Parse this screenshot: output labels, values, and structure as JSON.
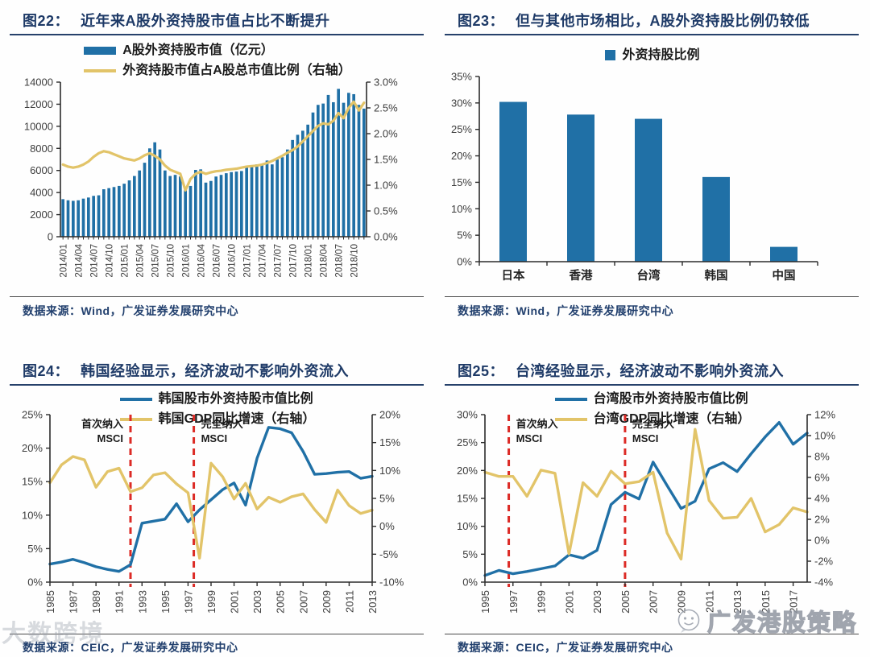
{
  "page": {
    "background": "#fefefe"
  },
  "colors": {
    "navy_title": "#1E3A67",
    "bar_blue": "#2070A6",
    "line_yellow": "#E2C469",
    "dash_red": "#DC2B26",
    "axis": "#2b2b2b",
    "tick_text": "#3d3d3d"
  },
  "watermarks": {
    "bottom_left_text": "大数跨境",
    "bottom_right_text": "广发港股策略",
    "bottom_right_icon": "chat-face-logo"
  },
  "figures": [
    {
      "label": "图22：",
      "title": "近年来A股外资持股市值占比不断提升",
      "source": "数据来源：Wind，广发证券发展研究中心",
      "chart_data": {
        "type": "bar",
        "title": "近年来A股外资持股市值占比不断提升",
        "legend_position": "top",
        "grid": false,
        "categories": [
          "2014/01",
          "2014/02",
          "2014/03",
          "2014/04",
          "2014/05",
          "2014/06",
          "2014/07",
          "2014/08",
          "2014/09",
          "2014/10",
          "2014/11",
          "2014/12",
          "2015/01",
          "2015/02",
          "2015/03",
          "2015/04",
          "2015/05",
          "2015/06",
          "2015/07",
          "2015/08",
          "2015/09",
          "2015/10",
          "2015/11",
          "2015/12",
          "2016/01",
          "2016/02",
          "2016/03",
          "2016/04",
          "2016/05",
          "2016/06",
          "2016/07",
          "2016/08",
          "2016/09",
          "2016/10",
          "2016/11",
          "2016/12",
          "2017/01",
          "2017/02",
          "2017/03",
          "2017/04",
          "2017/05",
          "2017/06",
          "2017/07",
          "2017/08",
          "2017/09",
          "2017/10",
          "2017/11",
          "2017/12",
          "2018/01",
          "2018/02",
          "2018/03",
          "2018/04",
          "2018/05",
          "2018/06",
          "2018/07",
          "2018/08",
          "2018/09",
          "2018/10",
          "2018/11",
          "2018/12"
        ],
        "x_tick_every": 3,
        "series": [
          {
            "name": "A股外资持股市值（亿元）",
            "type": "bar",
            "axis": "left",
            "color": "#2070A6",
            "values": [
              3400,
              3300,
              3250,
              3300,
              3450,
              3550,
              3700,
              3750,
              4300,
              4400,
              4500,
              4600,
              4800,
              5100,
              5500,
              6000,
              6700,
              8000,
              8550,
              7900,
              6000,
              5500,
              5600,
              5450,
              4250,
              4600,
              6050,
              6100,
              4900,
              5050,
              5450,
              5600,
              5750,
              5850,
              5900,
              5950,
              6400,
              6350,
              6550,
              6500,
              6900,
              6550,
              7000,
              7200,
              7900,
              8760,
              9230,
              9600,
              10150,
              11250,
              11940,
              12060,
              12840,
              12180,
              13390,
              12130,
              13030,
              12910,
              11940,
              11600
            ]
          },
          {
            "name": "外资持股市值占A股总市值比例（右轴）",
            "type": "line",
            "axis": "right",
            "color": "#E2C469",
            "values": [
              1.4,
              1.36,
              1.34,
              1.36,
              1.4,
              1.46,
              1.55,
              1.62,
              1.66,
              1.64,
              1.6,
              1.56,
              1.52,
              1.5,
              1.48,
              1.52,
              1.58,
              1.62,
              1.57,
              1.5,
              1.38,
              1.3,
              1.26,
              1.22,
              0.9,
              1.12,
              1.22,
              1.26,
              1.22,
              1.25,
              1.27,
              1.28,
              1.3,
              1.31,
              1.32,
              1.34,
              1.36,
              1.37,
              1.38,
              1.4,
              1.43,
              1.47,
              1.52,
              1.57,
              1.63,
              1.68,
              1.75,
              1.85,
              1.95,
              2.05,
              2.15,
              2.2,
              2.18,
              2.25,
              2.4,
              2.3,
              2.5,
              2.62,
              2.45,
              2.6
            ]
          }
        ],
        "left_axis": {
          "min": 0,
          "max": 14000,
          "step": 2000,
          "format": "int"
        },
        "right_axis": {
          "min": 0,
          "max": 3,
          "step": 0.5,
          "format": "pct1"
        }
      }
    },
    {
      "label": "图23：",
      "title": "但与其他市场相比，A股外资持股比例仍较低",
      "source": "数据来源：Wind，广发证券发展研究中心",
      "chart_data": {
        "type": "bar",
        "title": "但与其他市场相比，A股外资持股比例仍较低",
        "legend_position": "top",
        "grid": false,
        "categories": [
          "日本",
          "香港",
          "台湾",
          "韩国",
          "中国"
        ],
        "series": [
          {
            "name": "外资持股比例",
            "type": "bar",
            "axis": "left",
            "color": "#2070A6",
            "values": [
              30.2,
              27.8,
              27.0,
              16.0,
              2.8
            ]
          }
        ],
        "left_axis": {
          "min": 0,
          "max": 35,
          "step": 5,
          "format": "pct0"
        }
      }
    },
    {
      "label": "图24：",
      "title": "韩国经验显示，经济波动不影响外资流入",
      "source": "数据来源：CEIC，广发证券发展研究中心",
      "chart_data": {
        "type": "line",
        "title": "韩国经验显示，经济波动不影响外资流入",
        "legend_position": "top",
        "grid": false,
        "x": [
          1985,
          1986,
          1987,
          1988,
          1989,
          1990,
          1991,
          1992,
          1993,
          1994,
          1995,
          1996,
          1997,
          1998,
          1999,
          2000,
          2001,
          2002,
          2003,
          2004,
          2005,
          2006,
          2007,
          2008,
          2009,
          2010,
          2011,
          2012,
          2013
        ],
        "x_tick_labels": [
          "1985",
          "1987",
          "1989",
          "1991",
          "1993",
          "1995",
          "1997",
          "1999",
          "2001",
          "2003",
          "2005",
          "2007",
          "2009",
          "2011",
          "2013"
        ],
        "series": [
          {
            "name": "韩国股市外资持股市值比例",
            "type": "line",
            "axis": "left",
            "color": "#2070A6",
            "values": [
              2.7,
              3.0,
              3.4,
              2.9,
              2.3,
              1.9,
              1.6,
              2.6,
              8.8,
              9.1,
              9.4,
              11.7,
              9.0,
              10.8,
              12.3,
              13.8,
              14.8,
              11.5,
              18.5,
              23.1,
              22.9,
              22.3,
              19.5,
              16.1,
              16.2,
              16.4,
              16.5,
              15.5,
              15.8
            ]
          },
          {
            "name": "韩国GDP同比增速（右轴）",
            "type": "line",
            "axis": "right",
            "color": "#E2C469",
            "values": [
              7.8,
              11.0,
              12.5,
              11.9,
              7.0,
              9.8,
              10.4,
              6.2,
              6.9,
              9.2,
              9.6,
              7.6,
              6.0,
              -5.7,
              11.3,
              8.9,
              4.9,
              7.7,
              3.1,
              5.2,
              4.3,
              5.3,
              5.8,
              3.0,
              0.7,
              6.5,
              3.7,
              2.3,
              2.9
            ]
          }
        ],
        "left_axis": {
          "min": 0,
          "max": 25,
          "step": 5,
          "format": "pct0"
        },
        "right_axis": {
          "min": -10,
          "max": 20,
          "step": 5,
          "format": "pct0"
        },
        "annotations": [
          {
            "lines": [
              "首次纳入",
              "MSCI"
            ],
            "x": 1992.0,
            "side": "left",
            "color": "#DC2B26"
          },
          {
            "lines": [
              "完全纳入",
              "MSCI"
            ],
            "x": 1997.5,
            "side": "right",
            "color": "#DC2B26"
          }
        ]
      }
    },
    {
      "label": "图25：",
      "title": "台湾经验显示，经济波动不影响外资流入",
      "source": "数据来源：CEIC，广发证券发展研究中心",
      "chart_data": {
        "type": "line",
        "title": "台湾经验显示，经济波动不影响外资流入",
        "legend_position": "top",
        "grid": false,
        "x": [
          1995,
          1996,
          1997,
          1998,
          1999,
          2000,
          2001,
          2002,
          2003,
          2004,
          2005,
          2006,
          2007,
          2008,
          2009,
          2010,
          2011,
          2012,
          2013,
          2014,
          2015,
          2016,
          2017,
          2018
        ],
        "x_tick_labels": [
          "1995",
          "1997",
          "1999",
          "2001",
          "2003",
          "2005",
          "2007",
          "2009",
          "2011",
          "2013",
          "2015",
          "2017"
        ],
        "series": [
          {
            "name": "台湾股市外资持股市值比例",
            "type": "line",
            "axis": "left",
            "color": "#2070A6",
            "values": [
              1.2,
              2.1,
              1.5,
              1.9,
              2.4,
              2.9,
              4.9,
              4.3,
              5.7,
              13.9,
              16.1,
              14.9,
              21.5,
              17.3,
              13.2,
              14.5,
              20.3,
              21.4,
              19.8,
              23.0,
              26.0,
              28.6,
              24.7,
              26.7
            ]
          },
          {
            "name": "台湾GDP同比增速（右轴）",
            "type": "line",
            "axis": "right",
            "color": "#E2C469",
            "values": [
              6.5,
              6.1,
              6.1,
              4.2,
              6.7,
              6.4,
              -1.3,
              5.5,
              4.2,
              6.6,
              5.4,
              5.6,
              6.5,
              0.7,
              -1.8,
              10.6,
              3.8,
              2.1,
              2.2,
              4.0,
              0.8,
              1.5,
              3.1,
              2.7
            ]
          }
        ],
        "left_axis": {
          "min": 0,
          "max": 30,
          "step": 5,
          "format": "pct0"
        },
        "right_axis": {
          "min": -4,
          "max": 12,
          "step": 2,
          "format": "pct0"
        },
        "annotations": [
          {
            "lines": [
              "首次纳入",
              "MSCI"
            ],
            "x": 1996.7,
            "side": "right",
            "color": "#DC2B26"
          },
          {
            "lines": [
              "完全纳入",
              "MSCI"
            ],
            "x": 2005.0,
            "side": "right",
            "color": "#DC2B26"
          }
        ]
      }
    }
  ]
}
